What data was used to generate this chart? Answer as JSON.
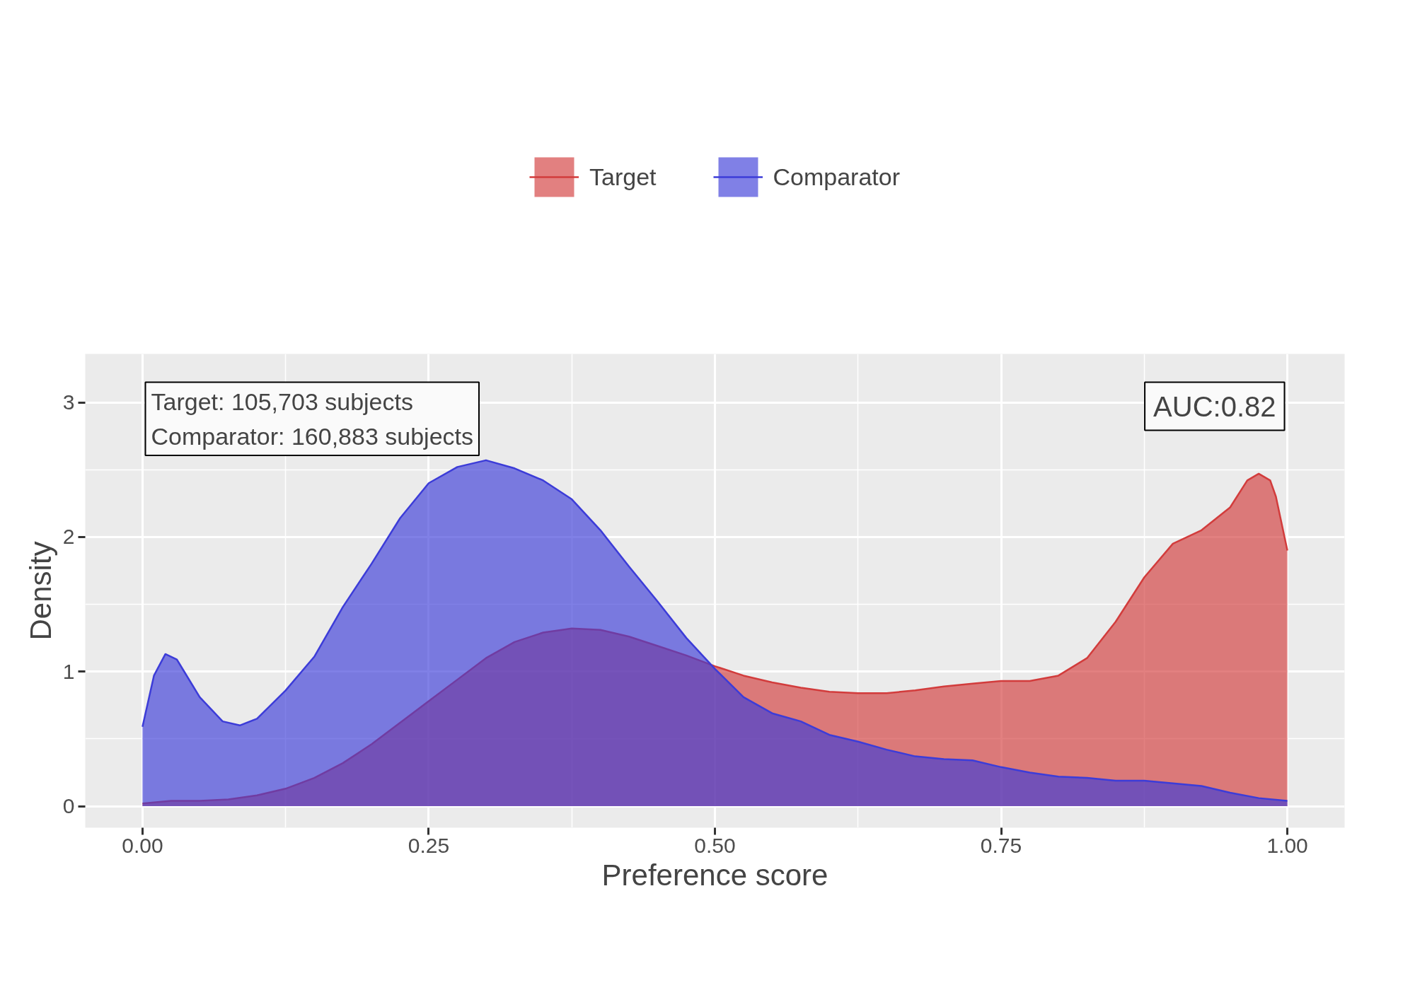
{
  "chart_data": {
    "type": "area",
    "xlabel": "Preference score",
    "ylabel": "Density",
    "legend": "top",
    "grid": true,
    "xlim": [
      -0.05,
      1.05
    ],
    "ylim": [
      -0.16,
      3.36
    ],
    "xticks": [
      {
        "value": 0,
        "label": "0.00"
      },
      {
        "value": 0.25,
        "label": "0.25"
      },
      {
        "value": 0.5,
        "label": "0.50"
      },
      {
        "value": 0.75,
        "label": "0.75"
      },
      {
        "value": 1,
        "label": "1.00"
      }
    ],
    "yticks": [
      0,
      1,
      2,
      3
    ],
    "annotations": [
      "Target: 105,703 subjects",
      "Comparator: 160,883 subjects",
      "AUC:0.82"
    ],
    "series": [
      {
        "name": "Target",
        "color": "#d23c3c",
        "x": [
          0,
          0.025,
          0.05,
          0.075,
          0.1,
          0.125,
          0.15,
          0.175,
          0.2,
          0.225,
          0.25,
          0.275,
          0.3,
          0.325,
          0.35,
          0.375,
          0.4,
          0.425,
          0.45,
          0.475,
          0.5,
          0.525,
          0.55,
          0.575,
          0.6,
          0.625,
          0.65,
          0.675,
          0.7,
          0.725,
          0.75,
          0.775,
          0.8,
          0.825,
          0.85,
          0.875,
          0.9,
          0.925,
          0.95,
          0.965,
          0.975,
          0.985,
          0.99,
          1.0
        ],
        "values": [
          0.02,
          0.04,
          0.04,
          0.05,
          0.08,
          0.13,
          0.21,
          0.32,
          0.46,
          0.62,
          0.78,
          0.94,
          1.1,
          1.22,
          1.29,
          1.32,
          1.31,
          1.26,
          1.19,
          1.12,
          1.04,
          0.97,
          0.92,
          0.88,
          0.85,
          0.84,
          0.84,
          0.86,
          0.89,
          0.91,
          0.93,
          0.93,
          0.97,
          1.1,
          1.37,
          1.7,
          1.95,
          2.05,
          2.22,
          2.42,
          2.47,
          2.42,
          2.3,
          1.9
        ]
      },
      {
        "name": "Comparator",
        "color": "#3c3cd8",
        "x": [
          0,
          0.01,
          0.02,
          0.03,
          0.05,
          0.07,
          0.085,
          0.1,
          0.125,
          0.15,
          0.175,
          0.2,
          0.225,
          0.25,
          0.275,
          0.3,
          0.325,
          0.35,
          0.375,
          0.4,
          0.425,
          0.45,
          0.475,
          0.5,
          0.525,
          0.55,
          0.575,
          0.6,
          0.625,
          0.65,
          0.675,
          0.7,
          0.725,
          0.75,
          0.775,
          0.8,
          0.825,
          0.85,
          0.875,
          0.9,
          0.925,
          0.95,
          0.975,
          1.0
        ],
        "values": [
          0.59,
          0.97,
          1.13,
          1.09,
          0.81,
          0.63,
          0.6,
          0.65,
          0.86,
          1.11,
          1.48,
          1.8,
          2.14,
          2.4,
          2.52,
          2.57,
          2.51,
          2.42,
          2.28,
          2.05,
          1.78,
          1.52,
          1.25,
          1.02,
          0.81,
          0.69,
          0.63,
          0.53,
          0.48,
          0.42,
          0.37,
          0.35,
          0.34,
          0.29,
          0.25,
          0.22,
          0.21,
          0.19,
          0.19,
          0.17,
          0.15,
          0.1,
          0.06,
          0.04
        ]
      }
    ]
  }
}
